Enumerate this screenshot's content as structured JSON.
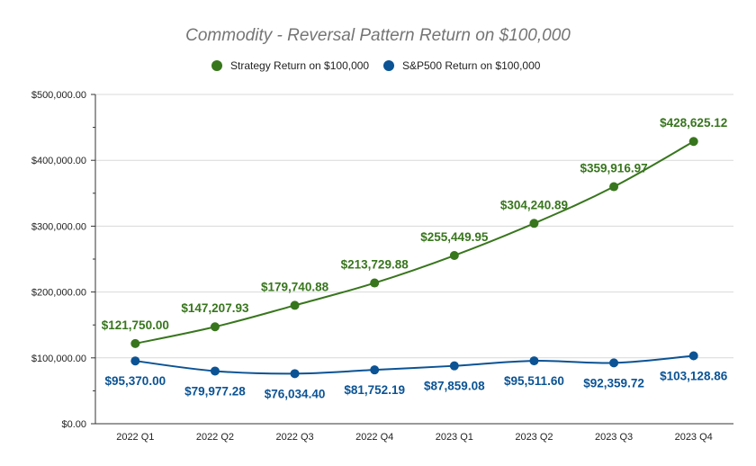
{
  "chart_data": {
    "type": "line",
    "title": "Commodity - Reversal Pattern Return on $100,000",
    "categories": [
      "2022 Q1",
      "2022 Q2",
      "2022 Q3",
      "2022 Q4",
      "2023 Q1",
      "2023 Q2",
      "2023 Q3",
      "2023 Q4"
    ],
    "series": [
      {
        "name": "Strategy Return on $100,000",
        "color": "#38761d",
        "values": [
          121750.0,
          147207.93,
          179740.88,
          213729.88,
          255449.95,
          304240.89,
          359916.97,
          428625.12
        ],
        "labels": [
          "$121,750.00",
          "$147,207.93",
          "$179,740.88",
          "$213,729.88",
          "$255,449.95",
          "$304,240.89",
          "$359,916.97",
          "$428,625.12"
        ]
      },
      {
        "name": "S&P500 Return on $100,000",
        "color": "#0b5394",
        "values": [
          95370.0,
          79977.28,
          76034.4,
          81752.19,
          87859.08,
          95511.6,
          92359.72,
          103128.86
        ],
        "labels": [
          "$95,370.00",
          "$79,977.28",
          "$76,034.40",
          "$81,752.19",
          "$87,859.08",
          "$95,511.60",
          "$92,359.72",
          "$103,128.86"
        ]
      }
    ],
    "ylim": [
      0,
      500000
    ],
    "yticks": [
      0,
      100000,
      200000,
      300000,
      400000,
      500000
    ],
    "ytick_labels": [
      "$0.00",
      "$100,000.00",
      "$200,000.00",
      "$300,000.00",
      "$400,000.00",
      "$500,000.00"
    ],
    "xlabel": "",
    "ylabel": "",
    "grid": true,
    "legend_position": "top-center"
  }
}
